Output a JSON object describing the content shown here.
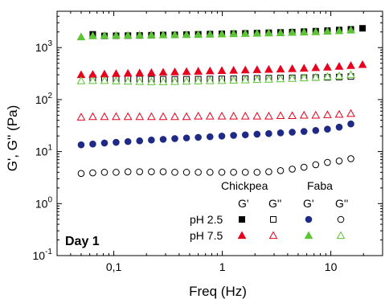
{
  "chart_data": {
    "type": "scatter",
    "title": "",
    "xlabel": "Freq (Hz)",
    "ylabel": "G', G'' (Pa)",
    "xscale": "log",
    "yscale": "log",
    "xlim": [
      0.03,
      30
    ],
    "ylim": [
      0.1,
      5000
    ],
    "xticks": [
      {
        "value": 0.1,
        "label": "0,1"
      },
      {
        "value": 1,
        "label": "1"
      },
      {
        "value": 10,
        "label": "10"
      }
    ],
    "yticks": [
      {
        "value": 0.1,
        "base": "10",
        "exp": "-1"
      },
      {
        "value": 1,
        "base": "10",
        "exp": "0"
      },
      {
        "value": 10,
        "base": "10",
        "exp": "1"
      },
      {
        "value": 100,
        "base": "10",
        "exp": "2"
      },
      {
        "value": 1000,
        "base": "10",
        "exp": "3"
      }
    ],
    "annotation": "Day 1",
    "legend": {
      "position": "bottom-right",
      "groups": [
        "Chickpea",
        "Faba"
      ],
      "moduli": [
        "G'",
        "G''",
        "G'",
        "G''"
      ],
      "rows": [
        "pH 2.5",
        "pH 7.5"
      ]
    },
    "x": [
      0.05,
      0.064,
      0.082,
      0.105,
      0.135,
      0.173,
      0.222,
      0.285,
      0.365,
      0.468,
      0.6,
      0.77,
      0.99,
      1.27,
      1.63,
      2.09,
      2.68,
      3.44,
      4.41,
      5.66,
      7.26,
      9.31,
      11.94,
      15.3,
      19.6
    ],
    "series": [
      {
        "name": "Chickpea G' pH 2.5",
        "color": "#000000",
        "marker": "square",
        "filled": true,
        "values": [
          null,
          1800,
          1680,
          1690,
          1700,
          1710,
          1730,
          1750,
          1760,
          1780,
          1800,
          1820,
          1840,
          1860,
          1880,
          1900,
          1930,
          1960,
          1990,
          2030,
          2070,
          2120,
          2180,
          2250,
          2350
        ]
      },
      {
        "name": "Chickpea G'' pH 2.5",
        "color": "#000000",
        "marker": "square",
        "filled": false,
        "values": [
          null,
          262,
          255,
          252,
          250,
          248,
          246,
          245,
          245,
          246,
          247,
          248,
          250,
          252,
          254,
          256,
          258,
          260,
          262,
          264,
          266,
          268,
          272,
          278,
          null
        ]
      },
      {
        "name": "Chickpea G' pH 7.5",
        "color": "#e8001c",
        "marker": "triangle",
        "filled": true,
        "values": [
          300,
          305,
          310,
          315,
          320,
          325,
          330,
          335,
          340,
          345,
          350,
          355,
          360,
          365,
          370,
          375,
          380,
          385,
          392,
          400,
          410,
          420,
          435,
          450,
          470
        ]
      },
      {
        "name": "Chickpea G'' pH 7.5",
        "color": "#e8001c",
        "marker": "triangle",
        "filled": false,
        "values": [
          46,
          47,
          47,
          47,
          47,
          47,
          47,
          47,
          47,
          47,
          48,
          48,
          48,
          48,
          48,
          48,
          48,
          49,
          49,
          50,
          50,
          51,
          52,
          54,
          null
        ]
      },
      {
        "name": "Faba G' pH 2.5",
        "color": "#1f2a86",
        "marker": "circle",
        "filled": true,
        "values": [
          13.5,
          14.0,
          14.6,
          15.1,
          15.6,
          16.1,
          16.7,
          17.2,
          17.8,
          18.3,
          18.8,
          19.3,
          19.9,
          20.5,
          21.0,
          21.6,
          22.2,
          22.9,
          23.6,
          24.4,
          25.5,
          27.0,
          29.5,
          34.0,
          null
        ]
      },
      {
        "name": "Faba G'' pH 2.5",
        "color": "#000000",
        "marker": "circle",
        "filled": false,
        "values": [
          3.8,
          3.9,
          4.0,
          4.0,
          4.1,
          4.1,
          4.1,
          4.1,
          4.0,
          4.0,
          4.0,
          4.0,
          4.0,
          4.0,
          4.0,
          4.0,
          4.1,
          4.3,
          4.6,
          5.0,
          5.6,
          6.2,
          6.6,
          7.3,
          null
        ]
      },
      {
        "name": "Faba G' pH 7.5",
        "color": "#5cc435",
        "marker": "triangle",
        "filled": true,
        "values": [
          1600,
          1680,
          1700,
          1710,
          1720,
          1730,
          1740,
          1750,
          1760,
          1770,
          1780,
          1800,
          1820,
          1840,
          1860,
          1880,
          1900,
          1920,
          1950,
          1980,
          2010,
          2050,
          2100,
          2160,
          null
        ]
      },
      {
        "name": "Faba G'' pH 7.5",
        "color": "#5cc435",
        "marker": "triangle",
        "filled": false,
        "values": [
          230,
          232,
          232,
          228,
          225,
          222,
          220,
          220,
          222,
          225,
          228,
          230,
          232,
          235,
          238,
          242,
          246,
          250,
          255,
          260,
          268,
          276,
          285,
          300,
          null
        ]
      }
    ]
  }
}
